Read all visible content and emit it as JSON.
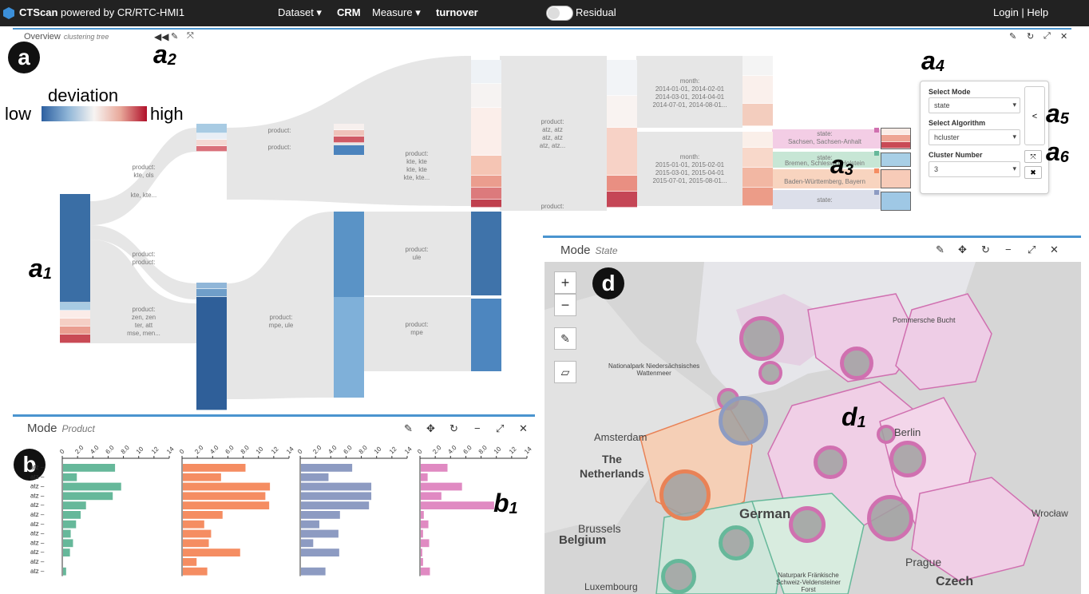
{
  "topbar": {
    "brand": "CTScan",
    "powered": "powered by CR/RTC-HMI1",
    "dataset_label": "Dataset ▾",
    "dataset_value": "CRM",
    "measure_label": "Measure ▾",
    "measure_value": "turnover",
    "residual_label": "Residual",
    "login": "Login | Help"
  },
  "overview": {
    "title": "Overview",
    "subtitle": "clustering tree",
    "controls": [
      "◀◀",
      "✎",
      "⤧"
    ],
    "panel_controls": [
      "✎",
      "↻",
      "⤢",
      "✕"
    ]
  },
  "annotations": {
    "a": "a",
    "a1": "a",
    "a1_sub": "1",
    "a2": "a",
    "a2_sub": "2",
    "a3": "a",
    "a3_sub": "3",
    "a4": "a",
    "a4_sub": "4",
    "a5": "a",
    "a5_sub": "5",
    "a6": "a",
    "a6_sub": "6",
    "b": "b",
    "b1": "b",
    "b1_sub": "1",
    "d": "d",
    "d1": "d",
    "d1_sub": "1"
  },
  "legend": {
    "title": "deviation",
    "low": "low",
    "high": "high"
  },
  "flow_labels": {
    "f1": "product:\nkte, ols",
    "f2": "kte, kte...",
    "f3": "product:",
    "f4": "product:",
    "f5": "product:\nkte, kte\nkte, kte\nkte, kte...",
    "f6": "product:\natz, atz\natz, atz\natz, atz...",
    "f7": "month:\n2014-01-01, 2014-02-01\n2014-03-01, 2014-04-01\n2014-07-01, 2014-08-01...",
    "f8": "month:\n2015-01-01, 2015-02-01\n2015-03-01, 2015-04-01\n2015-07-01, 2015-08-01...",
    "f9": "product:",
    "f10": "state:\nSachsen, Sachsen-Anhalt",
    "f11": "state:\nBremen, Schleswig-Holstein",
    "f12": "Baden-Württemberg, Bayern",
    "f13": "state:",
    "f14": "product:\nproduct:",
    "f15": "product:\nzen, zen\nter, att\nmse, men...",
    "f16": "product:\nmpe, ule",
    "f17": "product:\nule",
    "f18": "product:\nmpe"
  },
  "popup": {
    "mode_label": "Select Mode",
    "mode_value": "state",
    "algo_label": "Select Algorithm",
    "algo_value": "hcluster",
    "cluster_label": "Cluster Number",
    "cluster_value": "3",
    "share_icon": "<",
    "expand_icon": "⤧",
    "close_icon": "✖"
  },
  "mode_product": {
    "title": "Mode",
    "subtitle": "Product",
    "icons": [
      "✎",
      "✥",
      "↻",
      "−",
      "⤢",
      "✕"
    ],
    "axis_ticks": [
      "0",
      "2.0",
      "4.0",
      "6.0",
      "8.0",
      "10",
      "12",
      "14"
    ],
    "row_labels": [
      "atz",
      "atz",
      "atz",
      "atz",
      "atz",
      "atz",
      "atz",
      "atz",
      "atz",
      "atz",
      "atz",
      "atz"
    ]
  },
  "chart_data": {
    "type": "bar",
    "orientation": "horizontal",
    "categories": [
      "atz",
      "atz",
      "atz",
      "atz",
      "atz",
      "atz",
      "atz",
      "atz",
      "atz",
      "atz",
      "atz",
      "atz"
    ],
    "xlim": [
      0,
      14
    ],
    "series": [
      {
        "color": "#66b89a",
        "values": [
          6.8,
          1.8,
          7.6,
          6.5,
          3.0,
          2.3,
          1.7,
          1.0,
          1.3,
          0.9,
          0,
          0.4
        ]
      },
      {
        "color": "#f58d62",
        "values": [
          8.2,
          5.0,
          11.4,
          10.8,
          11.3,
          5.2,
          2.8,
          3.7,
          3.4,
          7.5,
          1.8,
          3.2
        ]
      },
      {
        "color": "#8d9bc2",
        "values": [
          6.7,
          3.6,
          9.2,
          9.2,
          8.9,
          5.1,
          2.4,
          4.9,
          1.6,
          5.0,
          0,
          3.2
        ]
      },
      {
        "color": "#e08ac2",
        "values": [
          3.5,
          0.9,
          5.4,
          2.7,
          9.6,
          0.4,
          1.0,
          0.3,
          1.1,
          0.2,
          0.3,
          1.2
        ]
      }
    ]
  },
  "mode_state": {
    "title": "Mode",
    "subtitle": "State",
    "icons": [
      "✎",
      "✥",
      "↻",
      "−",
      "⤢",
      "✕"
    ],
    "zoom_in": "+",
    "zoom_out": "−",
    "pen_icon": "✎",
    "eraser_icon": "▱"
  },
  "map_labels": {
    "pommersche": "Pommersche Bucht",
    "wattenmeer": "Nationalpark Niedersächsisches\nWattenmeer",
    "amsterdam": "Amsterdam",
    "netherlands": "The\nNetherlands",
    "german": "German",
    "berlin": "Berlin",
    "brussels": "Brussels",
    "belgium": "Belgium",
    "wroclaw": "Wrocław",
    "prague": "Prague",
    "czech": "Czech",
    "luxembourg": "Luxembourg",
    "frankische": "Naturpark Fränkische\nSchweiz-Veldensteiner\nForst"
  },
  "colors": {
    "accent": "#4a94cf",
    "low": "#2c5fa0",
    "high": "#b0102a",
    "pink_region": "#f0c8e4",
    "orange_region": "#f5c8a8",
    "green_region": "#c0e0d0"
  }
}
